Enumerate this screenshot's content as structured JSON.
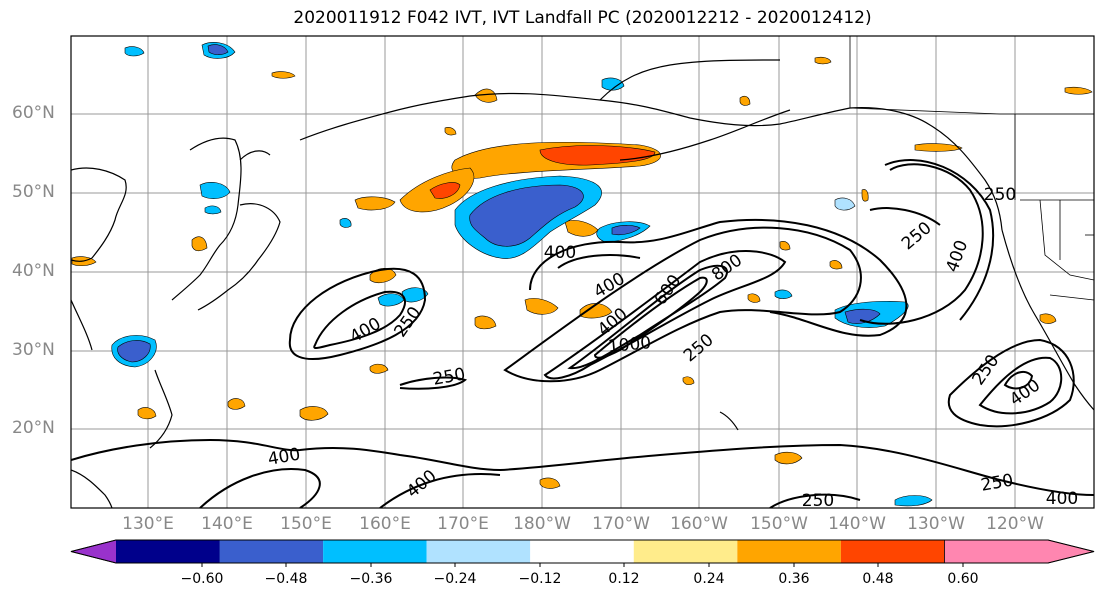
{
  "title": "2020011912 F042 IVT, IVT Landfall PC (2020012212 - 2020012412)",
  "lat_labels": [
    "60°N",
    "50°N",
    "40°N",
    "30°N",
    "20°N"
  ],
  "lon_labels": [
    "130°E",
    "140°E",
    "150°E",
    "160°E",
    "170°E",
    "180°W",
    "170°W",
    "160°W",
    "150°W",
    "140°W",
    "130°W",
    "120°W"
  ],
  "contour_labels": [
    "250",
    "400",
    "400",
    "250",
    "250",
    "400",
    "800",
    "600",
    "400",
    "1000",
    "250",
    "400",
    "250",
    "400",
    "400",
    "250",
    "250",
    "400",
    "250",
    "400"
  ],
  "colorbar": {
    "ticks": [
      "−0.60",
      "−0.48",
      "−0.36",
      "−0.24",
      "−0.12",
      "0.12",
      "0.24",
      "0.36",
      "0.48",
      "0.60"
    ],
    "colors": [
      "#9932cc",
      "#00008b",
      "#3a5fcd",
      "#00bfff",
      "#b0e2ff",
      "#ffffff",
      "#ffec8b",
      "#ffa500",
      "#ff4500",
      "#b22222",
      "#ff86b0"
    ]
  },
  "map_colors": {
    "land_outline": "#000000",
    "grid": "#999999",
    "contour": "#000000"
  }
}
